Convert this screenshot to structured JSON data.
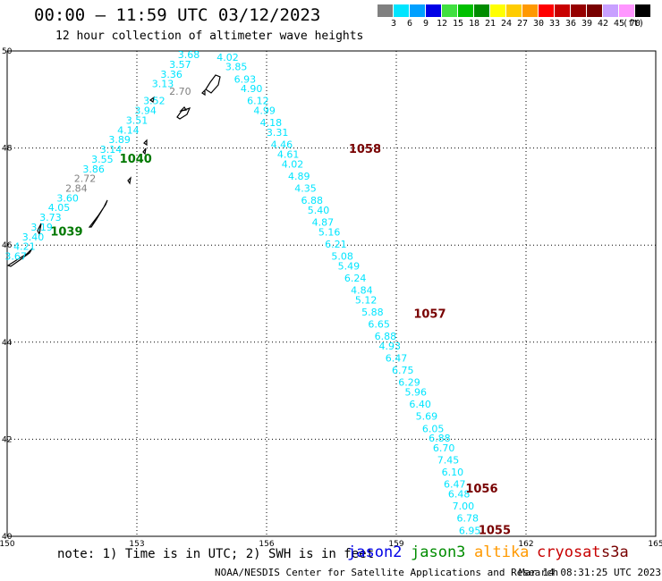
{
  "header": {
    "title": "00:00 – 11:59 UTC 03/12/2023",
    "subtitle": "12 hour collection of altimeter wave heights"
  },
  "color_scale": {
    "unit": "(ft)",
    "bins": [
      {
        "label": "3",
        "color": "#808080"
      },
      {
        "label": "6",
        "color": "#00e5ff"
      },
      {
        "label": "9",
        "color": "#00a0ff"
      },
      {
        "label": "12",
        "color": "#0000e6"
      },
      {
        "label": "15",
        "color": "#40e040"
      },
      {
        "label": "18",
        "color": "#00c000"
      },
      {
        "label": "21",
        "color": "#008c00"
      },
      {
        "label": "24",
        "color": "#ffff00"
      },
      {
        "label": "27",
        "color": "#ffcc00"
      },
      {
        "label": "30",
        "color": "#ff9900"
      },
      {
        "label": "33",
        "color": "#ff0000"
      },
      {
        "label": "36",
        "color": "#c80000"
      },
      {
        "label": "39",
        "color": "#960000"
      },
      {
        "label": "42",
        "color": "#780000"
      },
      {
        "label": "45",
        "color": "#c8a0ff"
      },
      {
        "label": "70",
        "color": "#ff96ff"
      },
      {
        "label": "",
        "color": "#000000"
      }
    ]
  },
  "chart_data": {
    "type": "scatter",
    "xlim": [
      150,
      165
    ],
    "ylim": [
      40,
      50
    ],
    "x_ticks": [
      "150",
      "153",
      "156",
      "159",
      "162",
      "165"
    ],
    "y_ticks": [
      "40",
      "42",
      "44",
      "46",
      "48",
      "50"
    ],
    "grid": true,
    "pass_labels": [
      {
        "text": "1058",
        "lon": 157.9,
        "lat": 47.9,
        "color": "#780000"
      },
      {
        "text": "1040",
        "lon": 152.6,
        "lat": 47.7,
        "color": "#007800"
      },
      {
        "text": "1039",
        "lon": 151.0,
        "lat": 46.2,
        "color": "#007800"
      },
      {
        "text": "1057",
        "lon": 159.4,
        "lat": 44.5,
        "color": "#780000"
      },
      {
        "text": "1056",
        "lon": 160.6,
        "lat": 40.9,
        "color": "#780000"
      },
      {
        "text": "1055",
        "lon": 160.9,
        "lat": 40.05,
        "color": "#780000"
      }
    ],
    "series": [
      {
        "name": "1058",
        "points": [
          {
            "lon": 155.1,
            "lat": 49.8,
            "v": "4.02",
            "c": "#00e5ff"
          },
          {
            "lon": 155.3,
            "lat": 49.6,
            "v": "3.85",
            "c": "#00e5ff"
          },
          {
            "lon": 155.5,
            "lat": 49.35,
            "v": "6.93",
            "c": "#00e5ff"
          },
          {
            "lon": 155.65,
            "lat": 49.15,
            "v": "4.90",
            "c": "#00e5ff"
          },
          {
            "lon": 155.8,
            "lat": 48.9,
            "v": "6.12",
            "c": "#00e5ff"
          },
          {
            "lon": 155.95,
            "lat": 48.7,
            "v": "4.99",
            "c": "#00e5ff"
          },
          {
            "lon": 156.1,
            "lat": 48.45,
            "v": "4.18",
            "c": "#00e5ff"
          },
          {
            "lon": 156.25,
            "lat": 48.25,
            "v": "3.31",
            "c": "#00e5ff"
          },
          {
            "lon": 156.35,
            "lat": 48.0,
            "v": "4.46",
            "c": "#00e5ff"
          },
          {
            "lon": 156.5,
            "lat": 47.8,
            "v": "4.61",
            "c": "#00e5ff"
          },
          {
            "lon": 156.6,
            "lat": 47.6,
            "v": "4.02",
            "c": "#00e5ff"
          },
          {
            "lon": 156.75,
            "lat": 47.35,
            "v": "4.89",
            "c": "#00e5ff"
          },
          {
            "lon": 156.9,
            "lat": 47.1,
            "v": "4.35",
            "c": "#00e5ff"
          },
          {
            "lon": 157.05,
            "lat": 46.85,
            "v": "6.88",
            "c": "#00e5ff"
          },
          {
            "lon": 157.2,
            "lat": 46.65,
            "v": "5.40",
            "c": "#00e5ff"
          },
          {
            "lon": 157.3,
            "lat": 46.4,
            "v": "4.87",
            "c": "#00e5ff"
          },
          {
            "lon": 157.45,
            "lat": 46.2,
            "v": "5.16",
            "c": "#00e5ff"
          },
          {
            "lon": 157.6,
            "lat": 45.95,
            "v": "6.21",
            "c": "#00e5ff"
          },
          {
            "lon": 157.75,
            "lat": 45.7,
            "v": "5.08",
            "c": "#00e5ff"
          },
          {
            "lon": 157.9,
            "lat": 45.5,
            "v": "5.49",
            "c": "#00e5ff"
          },
          {
            "lon": 158.05,
            "lat": 45.25,
            "v": "6.24",
            "c": "#00e5ff"
          },
          {
            "lon": 158.2,
            "lat": 45.0,
            "v": "4.84",
            "c": "#00e5ff"
          },
          {
            "lon": 158.3,
            "lat": 44.8,
            "v": "5.12",
            "c": "#00e5ff"
          },
          {
            "lon": 158.45,
            "lat": 44.55,
            "v": "5.88",
            "c": "#00e5ff"
          },
          {
            "lon": 158.6,
            "lat": 44.3,
            "v": "6.65",
            "c": "#00e5ff"
          },
          {
            "lon": 158.75,
            "lat": 44.05,
            "v": "6.88",
            "c": "#00e5ff"
          },
          {
            "lon": 158.85,
            "lat": 43.85,
            "v": "4.93",
            "c": "#00e5ff"
          },
          {
            "lon": 159.0,
            "lat": 43.6,
            "v": "6.47",
            "c": "#00e5ff"
          },
          {
            "lon": 159.15,
            "lat": 43.35,
            "v": "6.75",
            "c": "#00e5ff"
          },
          {
            "lon": 159.3,
            "lat": 43.1,
            "v": "6.29",
            "c": "#00e5ff"
          },
          {
            "lon": 159.45,
            "lat": 42.9,
            "v": "5.96",
            "c": "#00e5ff"
          },
          {
            "lon": 159.55,
            "lat": 42.65,
            "v": "6.40",
            "c": "#00e5ff"
          },
          {
            "lon": 159.7,
            "lat": 42.4,
            "v": "5.69",
            "c": "#00e5ff"
          },
          {
            "lon": 159.85,
            "lat": 42.15,
            "v": "6.05",
            "c": "#00e5ff"
          },
          {
            "lon": 160.0,
            "lat": 41.95,
            "v": "6.88",
            "c": "#00e5ff"
          },
          {
            "lon": 160.1,
            "lat": 41.75,
            "v": "6.70",
            "c": "#00e5ff"
          },
          {
            "lon": 160.2,
            "lat": 41.5,
            "v": "7.45",
            "c": "#00e5ff"
          },
          {
            "lon": 160.3,
            "lat": 41.25,
            "v": "6.10",
            "c": "#00e5ff"
          },
          {
            "lon": 160.35,
            "lat": 41.0,
            "v": "6.47",
            "c": "#00e5ff"
          },
          {
            "lon": 160.45,
            "lat": 40.8,
            "v": "6.48",
            "c": "#00e5ff"
          },
          {
            "lon": 160.55,
            "lat": 40.55,
            "v": "7.00",
            "c": "#00e5ff"
          },
          {
            "lon": 160.65,
            "lat": 40.3,
            "v": "6.78",
            "c": "#00e5ff"
          },
          {
            "lon": 160.7,
            "lat": 40.05,
            "v": "6.95",
            "c": "#00e5ff"
          }
        ]
      },
      {
        "name": "1040",
        "points": [
          {
            "lon": 154.2,
            "lat": 49.85,
            "v": "3.68",
            "c": "#00e5ff"
          },
          {
            "lon": 154.0,
            "lat": 49.65,
            "v": "3.57",
            "c": "#00e5ff"
          },
          {
            "lon": 153.8,
            "lat": 49.45,
            "v": "3.36",
            "c": "#00e5ff"
          },
          {
            "lon": 153.6,
            "lat": 49.25,
            "v": "3.13",
            "c": "#00e5ff"
          },
          {
            "lon": 154.0,
            "lat": 49.1,
            "v": "2.70",
            "c": "#808080"
          },
          {
            "lon": 153.4,
            "lat": 48.9,
            "v": "3.52",
            "c": "#00e5ff"
          },
          {
            "lon": 153.2,
            "lat": 48.7,
            "v": "3.94",
            "c": "#00e5ff"
          },
          {
            "lon": 153.0,
            "lat": 48.5,
            "v": "3.51",
            "c": "#00e5ff"
          },
          {
            "lon": 152.8,
            "lat": 48.3,
            "v": "4.14",
            "c": "#00e5ff"
          },
          {
            "lon": 152.6,
            "lat": 48.1,
            "v": "3.89",
            "c": "#00e5ff"
          },
          {
            "lon": 152.4,
            "lat": 47.9,
            "v": "3.14",
            "c": "#00e5ff"
          },
          {
            "lon": 152.2,
            "lat": 47.7,
            "v": "3.55",
            "c": "#00e5ff"
          },
          {
            "lon": 152.0,
            "lat": 47.5,
            "v": "3.86",
            "c": "#00e5ff"
          },
          {
            "lon": 151.8,
            "lat": 47.3,
            "v": "2.72",
            "c": "#808080"
          },
          {
            "lon": 151.6,
            "lat": 47.1,
            "v": "2.84",
            "c": "#808080"
          },
          {
            "lon": 151.4,
            "lat": 46.9,
            "v": "3.60",
            "c": "#00e5ff"
          },
          {
            "lon": 151.2,
            "lat": 46.7,
            "v": "4.05",
            "c": "#00e5ff"
          },
          {
            "lon": 151.0,
            "lat": 46.5,
            "v": "3.73",
            "c": "#00e5ff"
          },
          {
            "lon": 150.8,
            "lat": 46.3,
            "v": "3.19",
            "c": "#00e5ff"
          },
          {
            "lon": 150.6,
            "lat": 46.1,
            "v": "3.40",
            "c": "#00e5ff"
          },
          {
            "lon": 150.4,
            "lat": 45.9,
            "v": "4.21",
            "c": "#00e5ff"
          },
          {
            "lon": 150.2,
            "lat": 45.7,
            "v": "3.67",
            "c": "#00e5ff"
          }
        ]
      }
    ]
  },
  "footer": {
    "note": "note: 1) Time is in UTC; 2) SWH is in feet",
    "missions": [
      {
        "name": "jason2",
        "color": "#0000e6"
      },
      {
        "name": "jason3",
        "color": "#008c00"
      },
      {
        "name": "altika",
        "color": "#ff9900"
      },
      {
        "name": "cryosat",
        "color": "#c80000"
      },
      {
        "name": "s3a",
        "color": "#780000"
      }
    ],
    "credit": "NOAA/NESDIS Center for Satellite Applications and Research",
    "timestamp": "Mar 14 08:31:25 UTC 2023"
  }
}
